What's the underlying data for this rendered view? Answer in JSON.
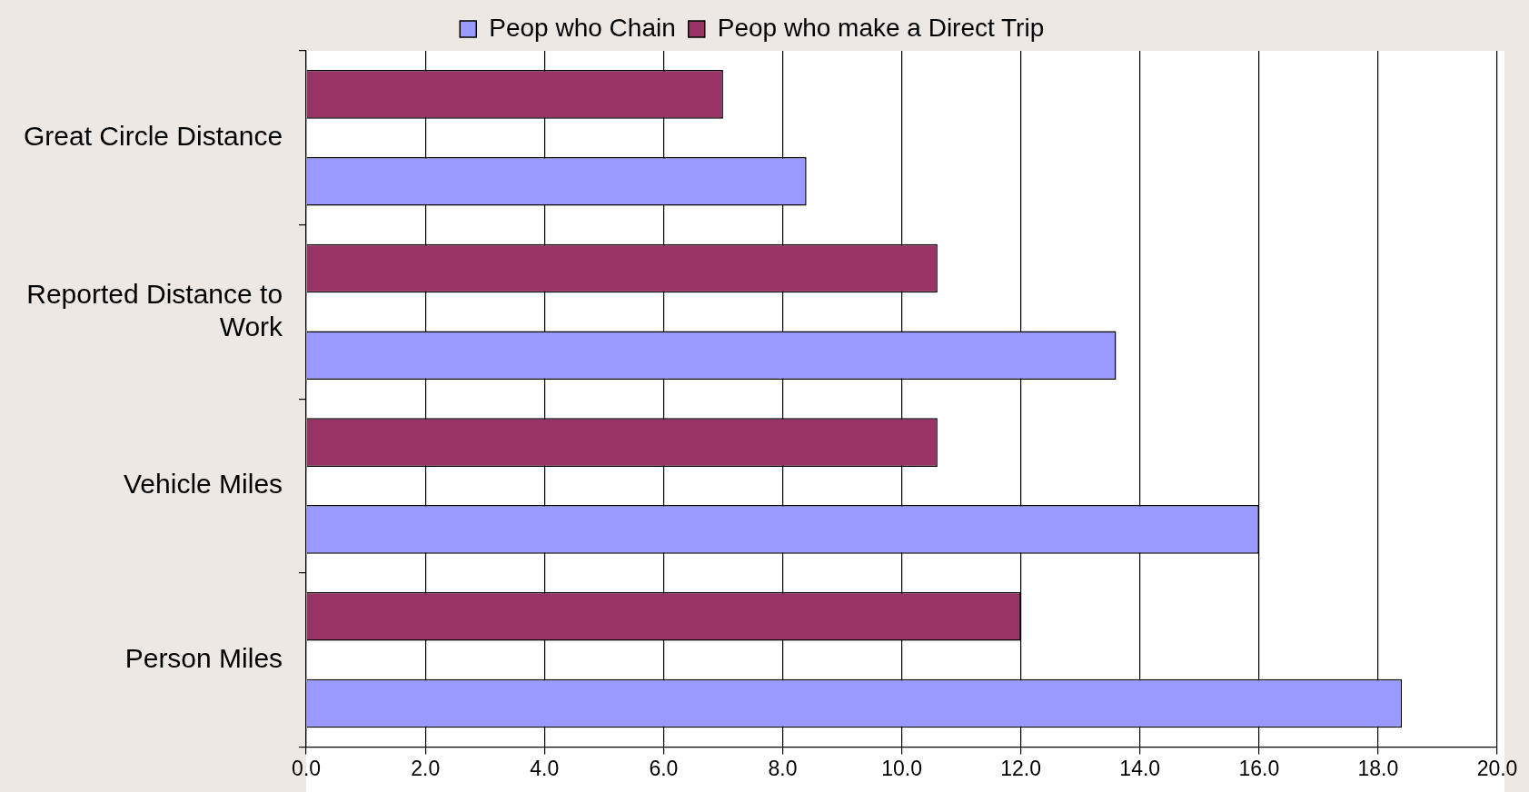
{
  "chart_data": {
    "type": "bar",
    "orientation": "horizontal",
    "categories": [
      "Great Circle Distance",
      "Reported Distance to Work",
      "Vehicle Miles",
      "Person Miles"
    ],
    "series": [
      {
        "name": "Peop who Chain",
        "color": "#9999ff",
        "values": [
          8.4,
          13.6,
          16.0,
          18.4
        ]
      },
      {
        "name": "Peop who make a Direct Trip",
        "color": "#993366",
        "values": [
          7.0,
          10.6,
          10.6,
          12.0
        ]
      }
    ],
    "xlim": [
      0,
      20
    ],
    "xticks": [
      {
        "value": 0,
        "label": "0.0"
      },
      {
        "value": 2,
        "label": "2.0"
      },
      {
        "value": 4,
        "label": "4.0"
      },
      {
        "value": 6,
        "label": "6.0"
      },
      {
        "value": 8,
        "label": "8.0"
      },
      {
        "value": 10,
        "label": "10.0"
      },
      {
        "value": 12,
        "label": "12.0"
      },
      {
        "value": 14,
        "label": "14.0"
      },
      {
        "value": 16,
        "label": "16.0"
      },
      {
        "value": 18,
        "label": "18.0"
      },
      {
        "value": 20,
        "label": "20.0"
      }
    ],
    "grid": "x",
    "legend": "top"
  }
}
